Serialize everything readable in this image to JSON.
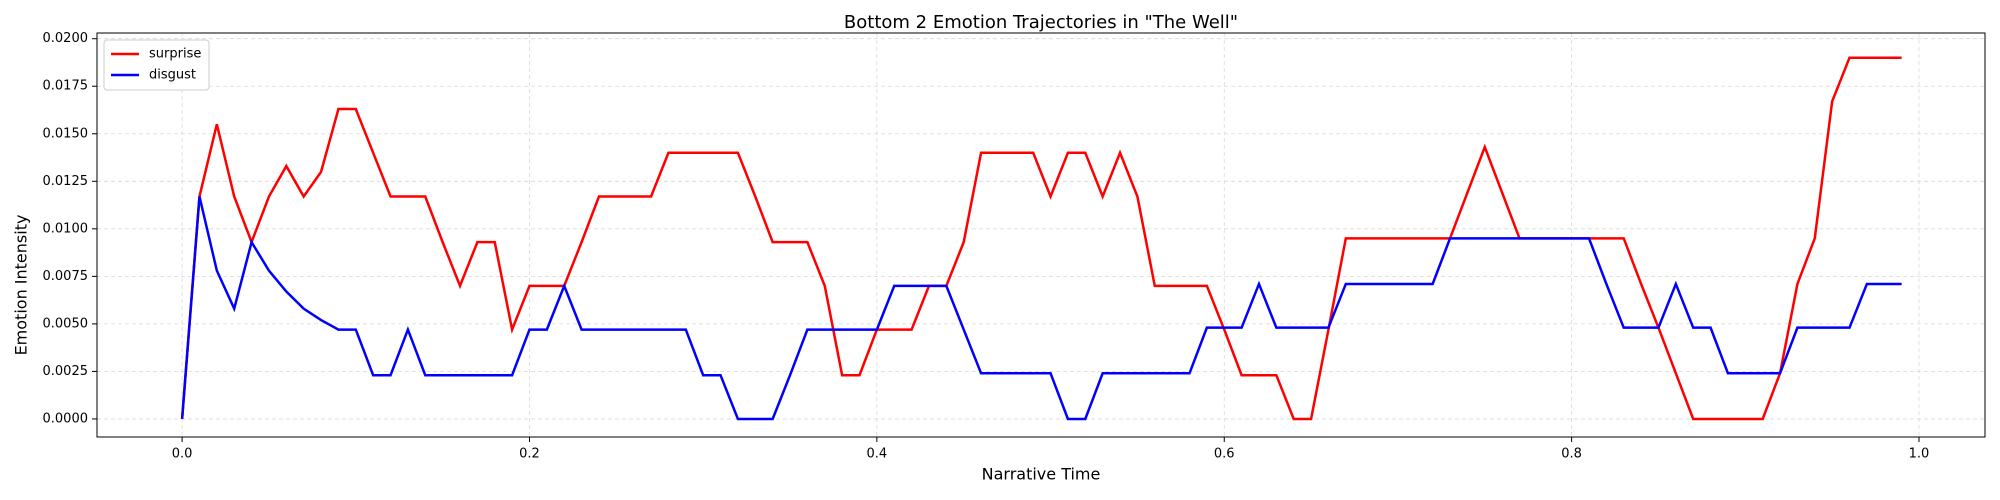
{
  "chart_data": {
    "type": "line",
    "title": "Bottom 2 Emotion Trajectories in \"The Well\"",
    "x_label": "Narrative Time",
    "y_label": "Emotion Intensity",
    "x": [
      0,
      0.01,
      0.02,
      0.03,
      0.04,
      0.05,
      0.06,
      0.07,
      0.08,
      0.09,
      0.1,
      0.11,
      0.12,
      0.13,
      0.14,
      0.15,
      0.16,
      0.17,
      0.18,
      0.19,
      0.2,
      0.21,
      0.22,
      0.23,
      0.24,
      0.25,
      0.26,
      0.27,
      0.28,
      0.29,
      0.3,
      0.31,
      0.32,
      0.33,
      0.34,
      0.35,
      0.36,
      0.37,
      0.38,
      0.39,
      0.4,
      0.41,
      0.42,
      0.43,
      0.44,
      0.45,
      0.46,
      0.47,
      0.48,
      0.49,
      0.5,
      0.51,
      0.52,
      0.53,
      0.54,
      0.55,
      0.56,
      0.57,
      0.58,
      0.59,
      0.6,
      0.61,
      0.62,
      0.63,
      0.64,
      0.65,
      0.66,
      0.67,
      0.68,
      0.69,
      0.7,
      0.71,
      0.72,
      0.73,
      0.74,
      0.75,
      0.76,
      0.77,
      0.78,
      0.79,
      0.8,
      0.81,
      0.82,
      0.83,
      0.84,
      0.85,
      0.86,
      0.87,
      0.88,
      0.89,
      0.9,
      0.91,
      0.92,
      0.93,
      0.94,
      0.95,
      0.96,
      0.97,
      0.98,
      0.99
    ],
    "series": [
      {
        "name": "surprise",
        "color": "#ff0000",
        "values": [
          0,
          0.0117,
          0.0155,
          0.0117,
          0.0093,
          0.0117,
          0.0133,
          0.0117,
          0.013,
          0.0163,
          0.0163,
          0.014,
          0.0117,
          0.0117,
          0.0117,
          0.0093,
          0.007,
          0.0093,
          0.0093,
          0.0047,
          0.007,
          0.007,
          0.007,
          0.0093,
          0.0117,
          0.0117,
          0.0117,
          0.0117,
          0.014,
          0.014,
          0.014,
          0.014,
          0.014,
          0.0117,
          0.0093,
          0.0093,
          0.0093,
          0.007,
          0.0023,
          0.0023,
          0.0047,
          0.0047,
          0.0047,
          0.007,
          0.007,
          0.0093,
          0.014,
          0.014,
          0.014,
          0.014,
          0.0117,
          0.014,
          0.014,
          0.0117,
          0.014,
          0.0117,
          0.007,
          0.007,
          0.007,
          0.007,
          0.0047,
          0.0023,
          0.0023,
          0.0023,
          0,
          0,
          0.0047,
          0.0095,
          0.0095,
          0.0095,
          0.0095,
          0.0095,
          0.0095,
          0.0095,
          0.0119,
          0.0143,
          0.0119,
          0.0095,
          0.0095,
          0.0095,
          0.0095,
          0.0095,
          0.0095,
          0.0095,
          0.0071,
          0.0048,
          0.0024,
          0,
          0,
          0,
          0,
          0,
          0.0024,
          0.0071,
          0.0095,
          0.0167,
          0.019,
          0.019,
          0.019,
          0.019
        ]
      },
      {
        "name": "disgust",
        "color": "#0000ff",
        "values": [
          0,
          0.0117,
          0.0078,
          0.0058,
          0.0093,
          0.0078,
          0.0067,
          0.0058,
          0.0052,
          0.0047,
          0.0047,
          0.0023,
          0.0023,
          0.0047,
          0.0023,
          0.0023,
          0.0023,
          0.0023,
          0.0023,
          0.0023,
          0.0047,
          0.0047,
          0.007,
          0.0047,
          0.0047,
          0.0047,
          0.0047,
          0.0047,
          0.0047,
          0.0047,
          0.0023,
          0.0023,
          0,
          0,
          0,
          0.0023,
          0.0047,
          0.0047,
          0.0047,
          0.0047,
          0.0047,
          0.007,
          0.007,
          0.007,
          0.007,
          0.0047,
          0.0024,
          0.0024,
          0.0024,
          0.0024,
          0.0024,
          0,
          0,
          0.0024,
          0.0024,
          0.0024,
          0.0024,
          0.0024,
          0.0024,
          0.0048,
          0.0048,
          0.0048,
          0.0071,
          0.0048,
          0.0048,
          0.0048,
          0.0048,
          0.0071,
          0.0071,
          0.0071,
          0.0071,
          0.0071,
          0.0071,
          0.0095,
          0.0095,
          0.0095,
          0.0095,
          0.0095,
          0.0095,
          0.0095,
          0.0095,
          0.0095,
          0.0071,
          0.0048,
          0.0048,
          0.0048,
          0.0071,
          0.0048,
          0.0048,
          0.0024,
          0.0024,
          0.0024,
          0.0024,
          0.0048,
          0.0048,
          0.0048,
          0.0048,
          0.0071,
          0.0071,
          0.0071
        ]
      }
    ],
    "xlim": [
      -0.049,
      1.038
    ],
    "ylim": [
      -0.00095,
      0.0203
    ],
    "xticks": [
      {
        "value": 0,
        "label": "0.0"
      },
      0.2,
      0.4,
      0.6,
      0.8,
      {
        "value": 1,
        "label": "1.0"
      }
    ],
    "yticks": [
      {
        "value": 0,
        "label": "0.0000"
      },
      {
        "value": 0.0025,
        "label": "0.0025"
      },
      {
        "value": 0.005,
        "label": "0.0050"
      },
      {
        "value": 0.0075,
        "label": "0.0075"
      },
      {
        "value": 0.01,
        "label": "0.0100"
      },
      {
        "value": 0.0125,
        "label": "0.0125"
      },
      {
        "value": 0.015,
        "label": "0.0150"
      },
      {
        "value": 0.0175,
        "label": "0.0175"
      },
      {
        "value": 0.02,
        "label": "0.0200"
      }
    ],
    "grid": true,
    "legend": "upper-left"
  }
}
